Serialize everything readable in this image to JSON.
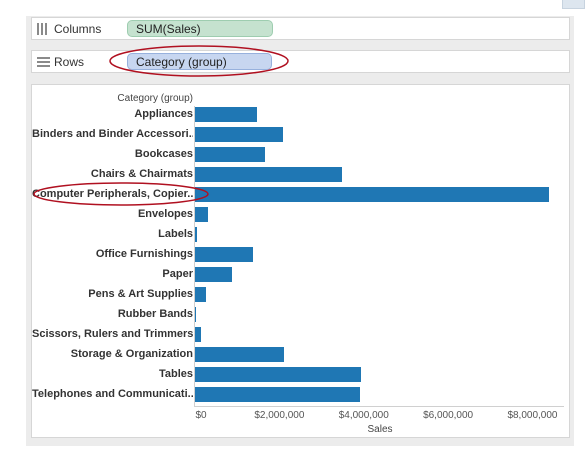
{
  "shelves": {
    "columns": {
      "label": "Columns",
      "pill": "SUM(Sales)"
    },
    "rows": {
      "label": "Rows",
      "pill": "Category (group)"
    }
  },
  "colors": {
    "bar": "#1f77b4",
    "highlight": "#b01020"
  },
  "chart_data": {
    "type": "bar",
    "orientation": "horizontal",
    "ylabel": "Category (group)",
    "xlabel": "Sales",
    "categories": [
      "Appliances",
      "Binders and Binder Accessori..",
      "Bookcases",
      "Chairs & Chairmats",
      "Computer Peripherals, Copier..",
      "Envelopes",
      "Labels",
      "Office Furnishings",
      "Paper",
      "Pens & Art Supplies",
      "Rubber Bands",
      "Scissors, Rulers and Trimmers",
      "Storage & Organization",
      "Tables",
      "Telephones and Communicati.."
    ],
    "values": [
      1480000,
      2080000,
      1660000,
      3490000,
      8390000,
      300000,
      40000,
      1380000,
      880000,
      270000,
      20000,
      150000,
      2100000,
      3930000,
      3900000
    ],
    "xticks": [
      "$0",
      "$2,000,000",
      "$4,000,000",
      "$6,000,000",
      "$8,000,000"
    ],
    "xtick_values": [
      0,
      2000000,
      4000000,
      6000000,
      8000000
    ],
    "xlim": [
      0,
      8700000
    ],
    "grid": false,
    "highlighted": [
      "Computer Peripherals, Copier.."
    ]
  }
}
